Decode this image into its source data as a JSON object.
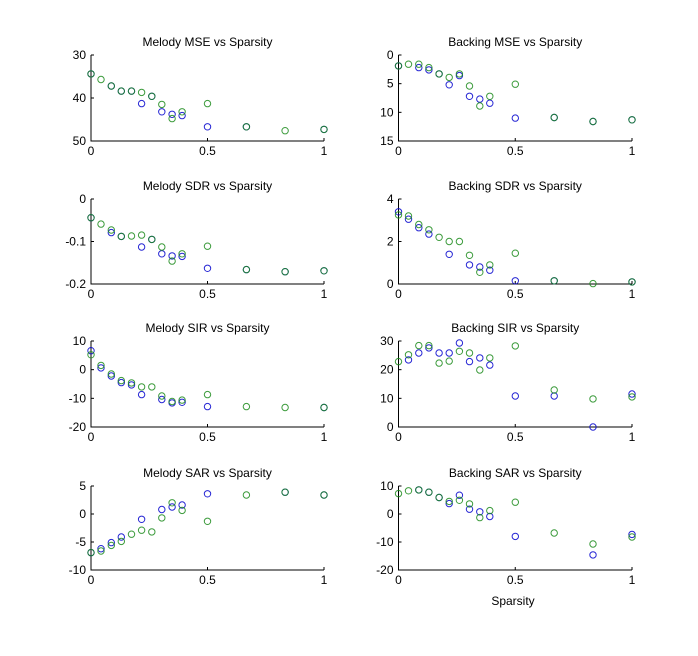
{
  "figure": {
    "xlabel": "Sparsity",
    "series_colors": {
      "blue": "#0000cc",
      "green": "#1a8a1a"
    }
  },
  "chart_data": [
    {
      "type": "scatter",
      "id": "melody-mse",
      "title": "Melody MSE vs Sparsity",
      "xlabel": "",
      "ylabel": "",
      "xlim": [
        0,
        1
      ],
      "ylim": [
        30,
        50
      ],
      "y_reversed": true,
      "xticks": [
        "0",
        "0.5",
        "1"
      ],
      "xtick_values": [
        0,
        0.5,
        1
      ],
      "yticks": [
        "30",
        "40",
        "50"
      ],
      "ytick_values": [
        30,
        40,
        50
      ],
      "series": [
        {
          "name": "blue",
          "x": [
            0,
            0.087,
            0.13,
            0.174,
            0.217,
            0.261,
            0.304,
            0.348,
            0.391,
            0.5,
            0.667,
            1
          ],
          "y": [
            34.4,
            37.2,
            38.4,
            38.4,
            41.3,
            39.6,
            43.2,
            43.8,
            44.1,
            46.7,
            46.7,
            47.3
          ]
        },
        {
          "name": "green",
          "x": [
            0,
            0.043,
            0.087,
            0.13,
            0.174,
            0.217,
            0.261,
            0.304,
            0.348,
            0.391,
            0.5,
            0.667,
            0.833,
            1
          ],
          "y": [
            34.4,
            35.7,
            37.2,
            38.4,
            38.4,
            38.7,
            39.6,
            41.5,
            44.8,
            43.2,
            41.3,
            46.7,
            47.6,
            47.3
          ]
        }
      ]
    },
    {
      "type": "scatter",
      "id": "backing-mse",
      "title": "Backing MSE vs Sparsity",
      "xlabel": "",
      "ylabel": "",
      "xlim": [
        0,
        1
      ],
      "ylim": [
        0,
        15
      ],
      "y_reversed": true,
      "xticks": [
        "0",
        "0.5",
        "1"
      ],
      "xtick_values": [
        0,
        0.5,
        1
      ],
      "yticks": [
        "0",
        "5",
        "10",
        "15"
      ],
      "ytick_values": [
        0,
        5,
        10,
        15
      ],
      "series": [
        {
          "name": "blue",
          "x": [
            0,
            0.087,
            0.13,
            0.174,
            0.217,
            0.261,
            0.304,
            0.348,
            0.391,
            0.5,
            0.667,
            0.833,
            1
          ],
          "y": [
            1.9,
            2.2,
            2.6,
            3.3,
            5.2,
            3.6,
            7.2,
            7.7,
            8.4,
            11.0,
            10.9,
            11.6,
            11.3
          ]
        },
        {
          "name": "green",
          "x": [
            0,
            0.043,
            0.087,
            0.13,
            0.174,
            0.217,
            0.261,
            0.304,
            0.348,
            0.391,
            0.5,
            0.667,
            0.833,
            1
          ],
          "y": [
            1.9,
            1.6,
            1.6,
            2.2,
            3.3,
            3.9,
            3.3,
            5.4,
            8.9,
            7.2,
            5.1,
            10.9,
            11.6,
            11.3
          ]
        }
      ]
    },
    {
      "type": "scatter",
      "id": "melody-sdr",
      "title": "Melody SDR vs Sparsity",
      "xlabel": "",
      "ylabel": "",
      "xlim": [
        0,
        1
      ],
      "ylim": [
        -0.2,
        0
      ],
      "y_reversed": false,
      "xticks": [
        "0",
        "0.5",
        "1"
      ],
      "xtick_values": [
        0,
        0.5,
        1
      ],
      "yticks": [
        "0",
        "-0.1",
        "-0.2"
      ],
      "ytick_values": [
        0,
        -0.1,
        -0.2
      ],
      "series": [
        {
          "name": "blue",
          "x": [
            0,
            0.087,
            0.13,
            0.217,
            0.261,
            0.304,
            0.348,
            0.391,
            0.5,
            0.667,
            0.833,
            1
          ],
          "y": [
            -0.044,
            -0.079,
            -0.088,
            -0.113,
            -0.095,
            -0.129,
            -0.134,
            -0.135,
            -0.163,
            -0.166,
            -0.171,
            -0.169
          ]
        },
        {
          "name": "green",
          "x": [
            0,
            0.043,
            0.087,
            0.13,
            0.174,
            0.217,
            0.261,
            0.304,
            0.348,
            0.391,
            0.5,
            0.667,
            0.833,
            1
          ],
          "y": [
            -0.044,
            -0.059,
            -0.073,
            -0.088,
            -0.087,
            -0.085,
            -0.095,
            -0.113,
            -0.146,
            -0.129,
            -0.111,
            -0.166,
            -0.171,
            -0.169
          ]
        }
      ]
    },
    {
      "type": "scatter",
      "id": "backing-sdr",
      "title": "Backing SDR vs Sparsity",
      "xlabel": "",
      "ylabel": "",
      "xlim": [
        0,
        1
      ],
      "ylim": [
        0,
        4
      ],
      "y_reversed": false,
      "xticks": [
        "0",
        "0.5",
        "1"
      ],
      "xtick_values": [
        0,
        0.5,
        1
      ],
      "yticks": [
        "4",
        "2",
        "0"
      ],
      "ytick_values": [
        4,
        2,
        0
      ],
      "series": [
        {
          "name": "blue",
          "x": [
            0,
            0.043,
            0.087,
            0.13,
            0.217,
            0.304,
            0.348,
            0.391,
            0.5,
            0.667,
            1
          ],
          "y": [
            3.4,
            3.05,
            2.65,
            2.35,
            1.4,
            0.9,
            0.8,
            0.65,
            0.15,
            0.15,
            0.1
          ]
        },
        {
          "name": "green",
          "x": [
            0,
            0.043,
            0.087,
            0.13,
            0.174,
            0.217,
            0.261,
            0.304,
            0.348,
            0.391,
            0.5,
            0.667,
            0.833,
            1
          ],
          "y": [
            3.25,
            3.2,
            2.8,
            2.55,
            2.2,
            2.0,
            2.0,
            1.35,
            0.55,
            0.9,
            1.45,
            0.15,
            0.02,
            0.1
          ]
        }
      ]
    },
    {
      "type": "scatter",
      "id": "melody-sir",
      "title": "Melody SIR vs Sparsity",
      "xlabel": "",
      "ylabel": "",
      "xlim": [
        0,
        1
      ],
      "ylim": [
        -20,
        10
      ],
      "y_reversed": false,
      "xticks": [
        "0",
        "0.5",
        "1"
      ],
      "xtick_values": [
        0,
        0.5,
        1
      ],
      "yticks": [
        "10",
        "0",
        "-10",
        "-20"
      ],
      "ytick_values": [
        10,
        0,
        -10,
        -20
      ],
      "series": [
        {
          "name": "blue",
          "x": [
            0,
            0.043,
            0.087,
            0.13,
            0.174,
            0.217,
            0.304,
            0.348,
            0.391,
            0.5,
            1
          ],
          "y": [
            6.6,
            0.6,
            -2.2,
            -4.5,
            -5.3,
            -8.7,
            -10.4,
            -11.6,
            -11.4,
            -12.9,
            -13.2
          ]
        },
        {
          "name": "green",
          "x": [
            0,
            0.043,
            0.087,
            0.13,
            0.174,
            0.217,
            0.261,
            0.304,
            0.348,
            0.391,
            0.5,
            0.667,
            0.833,
            1
          ],
          "y": [
            5.2,
            1.5,
            -1.5,
            -3.8,
            -4.6,
            -6.0,
            -6.0,
            -9.2,
            -11.1,
            -10.6,
            -8.7,
            -12.9,
            -13.2,
            -13.2
          ]
        }
      ]
    },
    {
      "type": "scatter",
      "id": "backing-sir",
      "title": "Backing SIR vs Sparsity",
      "xlabel": "",
      "ylabel": "",
      "xlim": [
        0,
        1
      ],
      "ylim": [
        0,
        30
      ],
      "y_reversed": false,
      "xticks": [
        "0",
        "0.5",
        "1"
      ],
      "xtick_values": [
        0,
        0.5,
        1
      ],
      "yticks": [
        "30",
        "20",
        "10",
        "0"
      ],
      "ytick_values": [
        30,
        20,
        10,
        0
      ],
      "series": [
        {
          "name": "blue",
          "x": [
            0.043,
            0.087,
            0.13,
            0.174,
            0.217,
            0.261,
            0.304,
            0.348,
            0.391,
            0.5,
            0.667,
            0.833,
            1
          ],
          "y": [
            23.4,
            25.8,
            27.6,
            25.8,
            25.8,
            29.3,
            22.8,
            24.1,
            21.6,
            10.8,
            10.8,
            0.0,
            11.5
          ]
        },
        {
          "name": "green",
          "x": [
            0,
            0.043,
            0.087,
            0.13,
            0.174,
            0.217,
            0.261,
            0.304,
            0.348,
            0.391,
            0.5,
            0.667,
            0.833,
            1
          ],
          "y": [
            22.8,
            25.2,
            28.4,
            28.4,
            22.3,
            23.0,
            26.4,
            25.8,
            19.9,
            24.1,
            28.3,
            12.9,
            9.8,
            10.5
          ]
        }
      ]
    },
    {
      "type": "scatter",
      "id": "melody-sar",
      "title": "Melody SAR vs Sparsity",
      "xlabel": "",
      "ylabel": "",
      "xlim": [
        0,
        1
      ],
      "ylim": [
        -10,
        5
      ],
      "y_reversed": false,
      "xticks": [
        "0",
        "0.5",
        "1"
      ],
      "xtick_values": [
        0,
        0.5,
        1
      ],
      "yticks": [
        "5",
        "0",
        "-5",
        "-10"
      ],
      "ytick_values": [
        5,
        0,
        -5,
        -10
      ],
      "series": [
        {
          "name": "blue",
          "x": [
            0,
            0.043,
            0.087,
            0.13,
            0.217,
            0.304,
            0.348,
            0.391,
            0.5,
            0.833,
            1
          ],
          "y": [
            -6.9,
            -6.2,
            -5.1,
            -4.1,
            -0.95,
            0.8,
            1.25,
            1.6,
            3.6,
            3.9,
            3.4
          ]
        },
        {
          "name": "green",
          "x": [
            0,
            0.043,
            0.087,
            0.13,
            0.174,
            0.217,
            0.261,
            0.304,
            0.348,
            0.391,
            0.5,
            0.667,
            0.833,
            1
          ],
          "y": [
            -6.9,
            -6.6,
            -5.6,
            -4.9,
            -3.6,
            -2.9,
            -3.2,
            -0.7,
            2.0,
            0.65,
            -1.3,
            3.4,
            3.9,
            3.4
          ]
        }
      ]
    },
    {
      "type": "scatter",
      "id": "backing-sar",
      "title": "Backing SAR vs Sparsity",
      "xlabel": "Sparsity",
      "ylabel": "",
      "xlim": [
        0,
        1
      ],
      "ylim": [
        -20,
        10
      ],
      "y_reversed": false,
      "xticks": [
        "0",
        "0.5",
        "1"
      ],
      "xtick_values": [
        0,
        0.5,
        1
      ],
      "yticks": [
        "10",
        "0",
        "-10",
        "-20"
      ],
      "ytick_values": [
        10,
        0,
        -10,
        -20
      ],
      "series": [
        {
          "name": "blue",
          "x": [
            0.087,
            0.13,
            0.174,
            0.217,
            0.261,
            0.304,
            0.348,
            0.391,
            0.5,
            0.833,
            1
          ],
          "y": [
            8.6,
            7.8,
            5.9,
            3.7,
            6.7,
            1.7,
            0.8,
            -0.9,
            -8.0,
            -14.6,
            -7.3
          ]
        },
        {
          "name": "green",
          "x": [
            0,
            0.043,
            0.087,
            0.13,
            0.174,
            0.217,
            0.261,
            0.304,
            0.348,
            0.391,
            0.5,
            0.667,
            0.833,
            1
          ],
          "y": [
            7.3,
            8.3,
            8.6,
            7.8,
            5.9,
            4.5,
            4.9,
            3.6,
            -1.3,
            1.2,
            4.2,
            -6.8,
            -10.7,
            -8.2
          ]
        }
      ]
    }
  ]
}
